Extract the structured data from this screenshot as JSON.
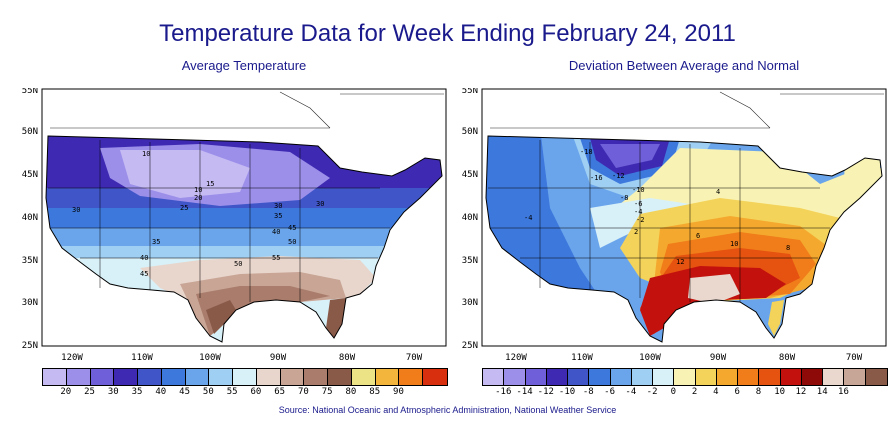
{
  "title": "Temperature Data for Week Ending February 24, 2011",
  "left_map": {
    "subtitle": "Average Temperature",
    "lat_labels": [
      "55N",
      "50N",
      "45N",
      "40N",
      "35N",
      "30N",
      "25N"
    ],
    "lon_labels": [
      "120W",
      "110W",
      "100W",
      "90W",
      "80W",
      "70W"
    ],
    "contour_labels": [
      "10",
      "15",
      "10",
      "20",
      "25",
      "30",
      "30",
      "30",
      "35",
      "35",
      "40",
      "40",
      "45",
      "45",
      "50",
      "50",
      "55"
    ],
    "legend": {
      "labels": [
        "20",
        "25",
        "30",
        "35",
        "40",
        "45",
        "50",
        "55",
        "60",
        "65",
        "70",
        "75",
        "80",
        "85",
        "90"
      ],
      "colors": [
        "#c6baf3",
        "#9b8fea",
        "#6f5fd8",
        "#3e2ab2",
        "#3f55c8",
        "#3d78dd",
        "#6aa5ec",
        "#9fd0f4",
        "#d8f0f8",
        "#e8d6cc",
        "#c9a596",
        "#a97c6c",
        "#8a5a49",
        "#ece286",
        "#f4b53c",
        "#f07d1a",
        "#d8300f"
      ]
    }
  },
  "right_map": {
    "subtitle": "Deviation Between Average and Normal",
    "lat_labels": [
      "55N",
      "50N",
      "45N",
      "40N",
      "35N",
      "30N",
      "25N"
    ],
    "lon_labels": [
      "120W",
      "110W",
      "100W",
      "90W",
      "80W",
      "70W"
    ],
    "contour_labels": [
      "-18",
      "-16",
      "-12",
      "-10",
      "-8",
      "-6",
      "-4",
      "-2",
      "2",
      "4",
      "6",
      "8",
      "10",
      "12",
      "-4"
    ],
    "legend": {
      "labels": [
        "-16",
        "-14",
        "-12",
        "-10",
        "-8",
        "-6",
        "-4",
        "-2",
        "0",
        "2",
        "4",
        "6",
        "8",
        "10",
        "12",
        "14",
        "16"
      ],
      "colors": [
        "#c6baf3",
        "#9b8fea",
        "#6f5fd8",
        "#3e2ab2",
        "#3f55c8",
        "#3d78dd",
        "#6aa5ec",
        "#9fd0f4",
        "#d8f0f8",
        "#f8f3b4",
        "#f4d35a",
        "#f4a92e",
        "#f07d1a",
        "#e6520f",
        "#c3120d",
        "#8e0a08",
        "#ead8cf",
        "#c7a698",
        "#8a5a49"
      ]
    }
  },
  "source": "Source:  National Oceanic and Atmospheric Administration, National Weather Service"
}
